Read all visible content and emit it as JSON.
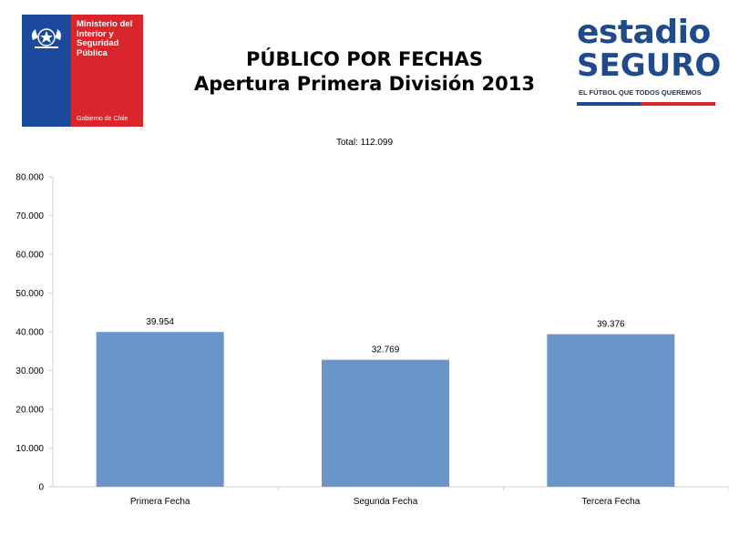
{
  "header": {
    "title_line1": "PÚBLICO POR FECHAS",
    "title_line2": "Apertura Primera División 2013"
  },
  "gov_logo": {
    "ministry": "Ministerio del\nInterior y\nSeguridad\nPública",
    "government": "Gobierno de Chile",
    "colors": {
      "blue": "#1b4a9c",
      "red": "#d9262c"
    }
  },
  "brand_logo": {
    "word1": "estadio",
    "word2": "SEGURO",
    "slogan": "EL FÚTBOL QUE TODOS QUEREMOS",
    "color": "#1f4a8c"
  },
  "total_label": "Total: 112.099",
  "chart_data": {
    "type": "bar",
    "categories": [
      "Primera Fecha",
      "Segunda Fecha",
      "Tercera Fecha"
    ],
    "values": [
      39954,
      32769,
      39376
    ],
    "value_labels": [
      "39.954",
      "32.769",
      "39.376"
    ],
    "y_ticks": [
      "0",
      "10.000",
      "20.000",
      "30.000",
      "40.000",
      "50.000",
      "60.000",
      "70.000",
      "80.000"
    ],
    "ylim": [
      0,
      80000
    ],
    "bar_color": "#6a95c9",
    "grid": false,
    "legend": "none"
  }
}
